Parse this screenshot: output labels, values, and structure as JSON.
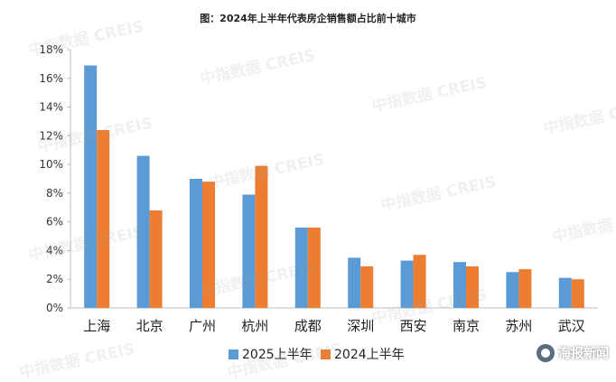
{
  "watermark": "中指数据 CREIS",
  "logo_text": "海报新闻",
  "chart_data": {
    "type": "bar",
    "title": "图：2024年上半年代表房企销售额占比前十城市",
    "categories": [
      "上海",
      "北京",
      "广州",
      "杭州",
      "成都",
      "深圳",
      "西安",
      "南京",
      "苏州",
      "武汉"
    ],
    "series": [
      {
        "name": "2025上半年",
        "color": "#5b9bd5",
        "values": [
          16.9,
          10.6,
          9.0,
          7.9,
          5.6,
          3.5,
          3.3,
          3.2,
          2.5,
          2.1
        ]
      },
      {
        "name": "2024上半年",
        "color": "#ed7d31",
        "values": [
          12.4,
          6.8,
          8.8,
          9.9,
          5.6,
          2.9,
          3.7,
          2.9,
          2.7,
          2.0
        ]
      }
    ],
    "ylim": [
      0,
      18
    ],
    "yticks": [
      "0%",
      "2%",
      "4%",
      "6%",
      "8%",
      "10%",
      "12%",
      "14%",
      "16%",
      "18%"
    ],
    "ytick_values": [
      0,
      2,
      4,
      6,
      8,
      10,
      12,
      14,
      16,
      18
    ],
    "legend_position": "bottom",
    "grid": false
  }
}
